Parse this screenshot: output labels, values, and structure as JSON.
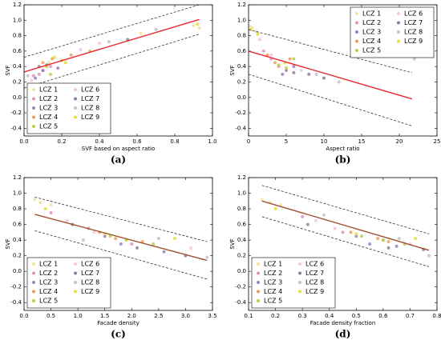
{
  "chart_data": [
    {
      "type": "scatter",
      "label": "(a)",
      "xlabel": "SVF based on aspect ratio",
      "ylabel": "SVF",
      "legend": "lower left",
      "xlim": [
        0,
        1
      ],
      "ylim": [
        -0.5,
        1.2
      ],
      "xticks": [
        {
          "value": 0,
          "label": "0.0"
        },
        0.2,
        0.4,
        0.6,
        0.8,
        {
          "value": 1,
          "label": "1.0"
        }
      ],
      "yticks": [
        -0.4,
        -0.2,
        {
          "value": 0,
          "label": "0.0"
        },
        0.2,
        0.4,
        0.6,
        0.8,
        {
          "value": 1,
          "label": "1.0"
        },
        1.2
      ],
      "series": [
        {
          "name": "LCZ 1",
          "color": "#f3e39a",
          "x": [
            0.9,
            0.93,
            0.62,
            0.13
          ],
          "y": [
            0.93,
            0.9,
            0.83,
            0.45
          ]
        },
        {
          "name": "LCZ 2",
          "color": "#e592bd",
          "x": [
            0.05,
            0.1,
            0.14,
            0.08
          ],
          "y": [
            0.28,
            0.35,
            0.4,
            0.3
          ]
        },
        {
          "name": "LCZ 3",
          "color": "#a17fbf",
          "x": [
            0.12,
            0.18,
            0.06
          ],
          "y": [
            0.42,
            0.38,
            0.25
          ]
        },
        {
          "name": "LCZ 4",
          "color": "#ef9f5d",
          "x": [
            0.15,
            0.25,
            0.1
          ],
          "y": [
            0.5,
            0.55,
            0.45
          ]
        },
        {
          "name": "LCZ 5",
          "color": "#bccf45",
          "x": [
            0.12,
            0.2,
            0.14,
            0.35
          ],
          "y": [
            0.4,
            0.48,
            0.3,
            0.6
          ]
        },
        {
          "name": "LCZ 6",
          "color": "#f1c6df",
          "x": [
            0.04,
            0.3,
            0.4
          ],
          "y": [
            0.22,
            0.62,
            0.7
          ]
        },
        {
          "name": "LCZ 7",
          "color": "#8f7f9f",
          "x": [
            0.1,
            0.55,
            0.08
          ],
          "y": [
            0.35,
            0.75,
            0.4
          ]
        },
        {
          "name": "LCZ 8",
          "color": "#c2c2c2",
          "x": [
            0.02,
            0.45,
            0.7
          ],
          "y": [
            0.28,
            0.72,
            0.88
          ]
        },
        {
          "name": "LCZ 9",
          "color": "#e6de3c",
          "x": [
            0.92,
            0.16,
            0.22
          ],
          "y": [
            0.95,
            0.52,
            0.45
          ]
        }
      ],
      "lines": [
        {
          "color": "#e8262a",
          "dash": false,
          "x": [
            0,
            0.93
          ],
          "y": [
            0.33,
            1.01
          ]
        },
        {
          "color": "#333333",
          "dash": true,
          "x": [
            0,
            0.93
          ],
          "y": [
            0.52,
            1.2
          ]
        },
        {
          "color": "#333333",
          "dash": true,
          "x": [
            0,
            0.93
          ],
          "y": [
            0.12,
            0.82
          ]
        }
      ]
    },
    {
      "type": "scatter",
      "label": "(b)",
      "xlabel": "Aspect ratio",
      "ylabel": "SVF",
      "legend": "upper right",
      "xlim": [
        0,
        25
      ],
      "ylim": [
        -0.5,
        1.2
      ],
      "xticks": [
        0,
        5,
        10,
        15,
        20,
        25
      ],
      "yticks": [
        -0.4,
        -0.2,
        {
          "value": 0,
          "label": "0.0"
        },
        0.2,
        0.4,
        0.6,
        0.8,
        {
          "value": 1,
          "label": "1.0"
        },
        1.2
      ],
      "series": [
        {
          "name": "LCZ 1",
          "color": "#f3e39a",
          "x": [
            0.2,
            0.5,
            1
          ],
          "y": [
            0.92,
            0.9,
            0.85
          ]
        },
        {
          "name": "LCZ 2",
          "color": "#e592bd",
          "x": [
            2,
            3,
            4
          ],
          "y": [
            0.6,
            0.5,
            0.4
          ]
        },
        {
          "name": "LCZ 3",
          "color": "#a17fbf",
          "x": [
            5,
            6,
            4.5
          ],
          "y": [
            0.35,
            0.4,
            0.3
          ]
        },
        {
          "name": "LCZ 4",
          "color": "#ef9f5d",
          "x": [
            3.5,
            5.5,
            2.5
          ],
          "y": [
            0.45,
            0.5,
            0.55
          ]
        },
        {
          "name": "LCZ 5",
          "color": "#bccf45",
          "x": [
            4,
            5,
            6
          ],
          "y": [
            0.42,
            0.38,
            0.5
          ]
        },
        {
          "name": "LCZ 6",
          "color": "#f1c6df",
          "x": [
            1.5,
            3,
            7
          ],
          "y": [
            0.75,
            0.55,
            0.35
          ]
        },
        {
          "name": "LCZ 7",
          "color": "#8f7f9f",
          "x": [
            6,
            8,
            10
          ],
          "y": [
            0.32,
            0.3,
            0.25
          ]
        },
        {
          "name": "LCZ 8",
          "color": "#c2c2c2",
          "x": [
            9,
            12,
            22
          ],
          "y": [
            0.3,
            0.2,
            0.5
          ]
        },
        {
          "name": "LCZ 9",
          "color": "#e6de3c",
          "x": [
            0.3,
            4.8,
            1.2
          ],
          "y": [
            0.88,
            0.45,
            0.82
          ]
        }
      ],
      "lines": [
        {
          "color": "#e8262a",
          "dash": false,
          "x": [
            0,
            21.7
          ],
          "y": [
            0.6,
            -0.02
          ]
        },
        {
          "color": "#333333",
          "dash": true,
          "x": [
            0,
            21.7
          ],
          "y": [
            0.88,
            0.32
          ]
        },
        {
          "color": "#333333",
          "dash": true,
          "x": [
            0,
            21.7
          ],
          "y": [
            0.3,
            -0.37
          ]
        }
      ]
    },
    {
      "type": "scatter",
      "label": "(c)",
      "xlabel": "Facade density",
      "ylabel": "SVF",
      "legend": "lower left",
      "xlim": [
        0,
        3.5
      ],
      "ylim": [
        -0.5,
        1.2
      ],
      "xticks": [
        {
          "value": 0,
          "label": "0.0"
        },
        0.5,
        {
          "value": 1,
          "label": "1.0"
        },
        1.5,
        {
          "value": 2,
          "label": "2.0"
        },
        2.5,
        {
          "value": 3,
          "label": "3.0"
        },
        3.5
      ],
      "yticks": [
        -0.4,
        -0.2,
        {
          "value": 0,
          "label": "0.0"
        },
        0.2,
        0.4,
        0.6,
        0.8,
        {
          "value": 1,
          "label": "1.0"
        },
        1.2
      ],
      "series": [
        {
          "name": "LCZ 1",
          "color": "#f3e39a",
          "x": [
            0.2,
            0.3,
            0.5
          ],
          "y": [
            0.92,
            0.88,
            0.85
          ]
        },
        {
          "name": "LCZ 2",
          "color": "#e592bd",
          "x": [
            0.5,
            1.2,
            2.0
          ],
          "y": [
            0.75,
            0.55,
            0.35
          ]
        },
        {
          "name": "LCZ 3",
          "color": "#a17fbf",
          "x": [
            1.5,
            1.8,
            2.6
          ],
          "y": [
            0.45,
            0.35,
            0.25
          ]
        },
        {
          "name": "LCZ 4",
          "color": "#ef9f5d",
          "x": [
            1.4,
            1.7,
            2.2
          ],
          "y": [
            0.5,
            0.42,
            0.38
          ]
        },
        {
          "name": "LCZ 5",
          "color": "#bccf45",
          "x": [
            1.6,
            1.9,
            2.4
          ],
          "y": [
            0.45,
            0.4,
            0.35
          ]
        },
        {
          "name": "LCZ 6",
          "color": "#f1c6df",
          "x": [
            0.8,
            1.3,
            3.1
          ],
          "y": [
            0.65,
            0.5,
            0.3
          ]
        },
        {
          "name": "LCZ 7",
          "color": "#8f7f9f",
          "x": [
            0.9,
            2.1,
            3.0
          ],
          "y": [
            0.6,
            0.3,
            0.2
          ]
        },
        {
          "name": "LCZ 8",
          "color": "#c2c2c2",
          "x": [
            1.1,
            2.5,
            3.4
          ],
          "y": [
            0.4,
            0.42,
            0.18
          ]
        },
        {
          "name": "LCZ 9",
          "color": "#e6de3c",
          "x": [
            0.4,
            1.5,
            2.8
          ],
          "y": [
            0.8,
            0.48,
            0.42
          ]
        }
      ],
      "lines": [
        {
          "color": "#a0502e",
          "dash": false,
          "x": [
            0.2,
            3.4
          ],
          "y": [
            0.73,
            0.14
          ]
        },
        {
          "color": "#333333",
          "dash": true,
          "x": [
            0.2,
            3.4
          ],
          "y": [
            0.95,
            0.38
          ]
        },
        {
          "color": "#333333",
          "dash": true,
          "x": [
            0.2,
            3.4
          ],
          "y": [
            0.52,
            -0.1
          ]
        }
      ]
    },
    {
      "type": "scatter",
      "label": "(d)",
      "xlabel": "Facade density fraction",
      "ylabel": "SVF",
      "legend": "lower left",
      "xlim": [
        0.1,
        0.8
      ],
      "ylim": [
        -0.5,
        1.2
      ],
      "xticks": [
        0.1,
        0.2,
        0.3,
        0.4,
        0.5,
        0.6,
        0.7,
        0.8
      ],
      "yticks": [
        -0.4,
        -0.2,
        {
          "value": 0,
          "label": "0.0"
        },
        0.2,
        0.4,
        0.6,
        0.8,
        {
          "value": 1,
          "label": "1.0"
        },
        1.2
      ],
      "series": [
        {
          "name": "LCZ 1",
          "color": "#f3e39a",
          "x": [
            0.15,
            0.18,
            0.22
          ],
          "y": [
            0.92,
            0.88,
            0.85
          ]
        },
        {
          "name": "LCZ 2",
          "color": "#e592bd",
          "x": [
            0.3,
            0.45,
            0.6
          ],
          "y": [
            0.7,
            0.5,
            0.4
          ]
        },
        {
          "name": "LCZ 3",
          "color": "#a17fbf",
          "x": [
            0.5,
            0.55,
            0.65
          ],
          "y": [
            0.45,
            0.35,
            0.32
          ]
        },
        {
          "name": "LCZ 4",
          "color": "#ef9f5d",
          "x": [
            0.48,
            0.58,
            0.62
          ],
          "y": [
            0.5,
            0.42,
            0.38
          ]
        },
        {
          "name": "LCZ 5",
          "color": "#bccf45",
          "x": [
            0.52,
            0.6,
            0.68
          ],
          "y": [
            0.45,
            0.4,
            0.35
          ]
        },
        {
          "name": "LCZ 6",
          "color": "#f1c6df",
          "x": [
            0.35,
            0.42,
            0.7
          ],
          "y": [
            0.65,
            0.55,
            0.35
          ]
        },
        {
          "name": "LCZ 7",
          "color": "#8f7f9f",
          "x": [
            0.32,
            0.62,
            0.75
          ],
          "y": [
            0.6,
            0.3,
            0.28
          ]
        },
        {
          "name": "LCZ 8",
          "color": "#c2c2c2",
          "x": [
            0.38,
            0.66,
            0.77
          ],
          "y": [
            0.72,
            0.42,
            0.2
          ]
        },
        {
          "name": "LCZ 9",
          "color": "#e6de3c",
          "x": [
            0.2,
            0.5,
            0.72
          ],
          "y": [
            0.8,
            0.48,
            0.42
          ]
        }
      ],
      "lines": [
        {
          "color": "#a0502e",
          "dash": false,
          "x": [
            0.15,
            0.77
          ],
          "y": [
            0.9,
            0.27
          ]
        },
        {
          "color": "#333333",
          "dash": true,
          "x": [
            0.15,
            0.77
          ],
          "y": [
            1.1,
            0.48
          ]
        },
        {
          "color": "#333333",
          "dash": true,
          "x": [
            0.15,
            0.77
          ],
          "y": [
            0.7,
            0.06
          ]
        }
      ]
    }
  ]
}
